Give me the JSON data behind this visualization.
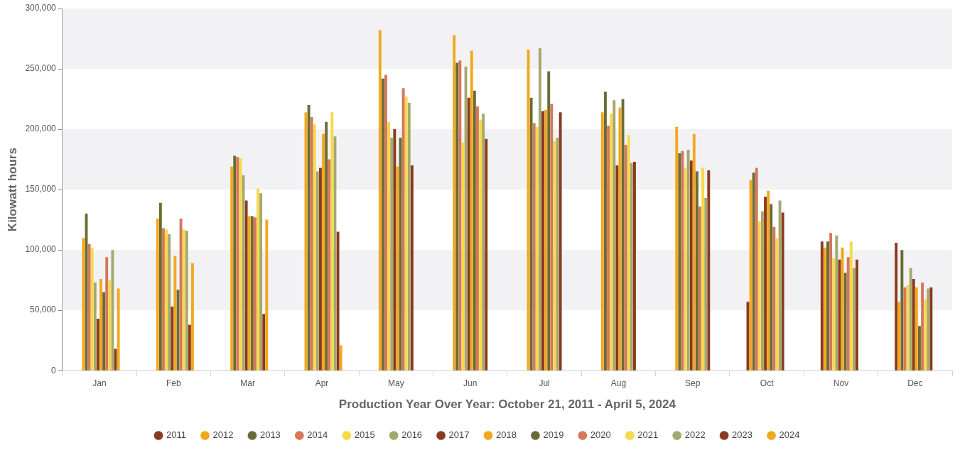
{
  "chart_data": {
    "type": "bar",
    "xlabel": "Production Year Over Year: October 21, 2011 - April 5, 2024",
    "ylabel": "Kilowatt hours",
    "categories": [
      "Jan",
      "Feb",
      "Mar",
      "Apr",
      "May",
      "Jun",
      "Jul",
      "Aug",
      "Sep",
      "Oct",
      "Nov",
      "Dec"
    ],
    "series": [
      {
        "name": "2011",
        "color": "#8b3a1e",
        "values": [
          null,
          null,
          null,
          null,
          null,
          null,
          null,
          null,
          null,
          57000,
          107000,
          106000
        ]
      },
      {
        "name": "2012",
        "color": "#f2a81d",
        "values": [
          110000,
          126000,
          169000,
          214000,
          282000,
          278000,
          266000,
          214000,
          202000,
          158000,
          102000,
          57000
        ]
      },
      {
        "name": "2013",
        "color": "#6b6b35",
        "values": [
          130000,
          139000,
          178000,
          220000,
          242000,
          255000,
          226000,
          231000,
          180000,
          164000,
          107000,
          100000
        ]
      },
      {
        "name": "2014",
        "color": "#d4785a",
        "values": [
          105000,
          118000,
          177000,
          210000,
          245000,
          257000,
          205000,
          203000,
          182000,
          168000,
          114000,
          69000
        ]
      },
      {
        "name": "2015",
        "color": "#f7d94a",
        "values": [
          102000,
          117000,
          176000,
          204000,
          206000,
          189000,
          202000,
          213000,
          168000,
          124000,
          93000,
          71000
        ]
      },
      {
        "name": "2016",
        "color": "#a4a86e",
        "values": [
          73000,
          113000,
          162000,
          165000,
          193000,
          252000,
          267000,
          224000,
          183000,
          132000,
          112000,
          85000
        ]
      },
      {
        "name": "2017",
        "color": "#8b3a1e",
        "values": [
          43000,
          53000,
          141000,
          168000,
          200000,
          226000,
          215000,
          170000,
          174000,
          144000,
          92000,
          76000
        ]
      },
      {
        "name": "2018",
        "color": "#f2a81d",
        "values": [
          76000,
          95000,
          128000,
          196000,
          169000,
          265000,
          216000,
          218000,
          196000,
          149000,
          102000,
          69000
        ]
      },
      {
        "name": "2019",
        "color": "#6b6b35",
        "values": [
          65000,
          67000,
          128000,
          206000,
          193000,
          232000,
          248000,
          225000,
          165000,
          138000,
          81000,
          37000
        ]
      },
      {
        "name": "2020",
        "color": "#d4785a",
        "values": [
          94000,
          126000,
          127000,
          175000,
          234000,
          219000,
          221000,
          187000,
          136000,
          119000,
          94000,
          73000
        ]
      },
      {
        "name": "2021",
        "color": "#f7d94a",
        "values": [
          75000,
          117000,
          151000,
          214000,
          227000,
          208000,
          190000,
          195000,
          168000,
          110000,
          107000,
          59000
        ]
      },
      {
        "name": "2022",
        "color": "#a4a86e",
        "values": [
          100000,
          116000,
          147000,
          194000,
          222000,
          213000,
          193000,
          172000,
          143000,
          141000,
          85000,
          68000
        ]
      },
      {
        "name": "2023",
        "color": "#8b3a1e",
        "values": [
          18000,
          38000,
          47000,
          115000,
          170000,
          192000,
          214000,
          173000,
          166000,
          131000,
          92000,
          69000
        ]
      },
      {
        "name": "2024",
        "color": "#f2a81d",
        "values": [
          68000,
          89000,
          125000,
          21000,
          null,
          null,
          null,
          null,
          null,
          null,
          null,
          null
        ]
      }
    ],
    "ylim": [
      0,
      300000
    ],
    "yticks": [
      {
        "value": 0,
        "label": "0"
      },
      {
        "value": 50000,
        "label": "50,000"
      },
      {
        "value": 100000,
        "label": "100,000"
      },
      {
        "value": 150000,
        "label": "150,000"
      },
      {
        "value": 200000,
        "label": "200,000"
      },
      {
        "value": 250000,
        "label": "250,000"
      },
      {
        "value": 300000,
        "label": "300,000"
      }
    ],
    "bands": [
      {
        "axis": "y",
        "from": 50000,
        "to": 100000,
        "color": "#f2f2f5"
      },
      {
        "axis": "y",
        "from": 150000,
        "to": 200000,
        "color": "#f2f2f5"
      },
      {
        "axis": "y",
        "from": 250000,
        "to": 300000,
        "color": "#f2f2f5"
      }
    ],
    "legend": "bottom"
  }
}
